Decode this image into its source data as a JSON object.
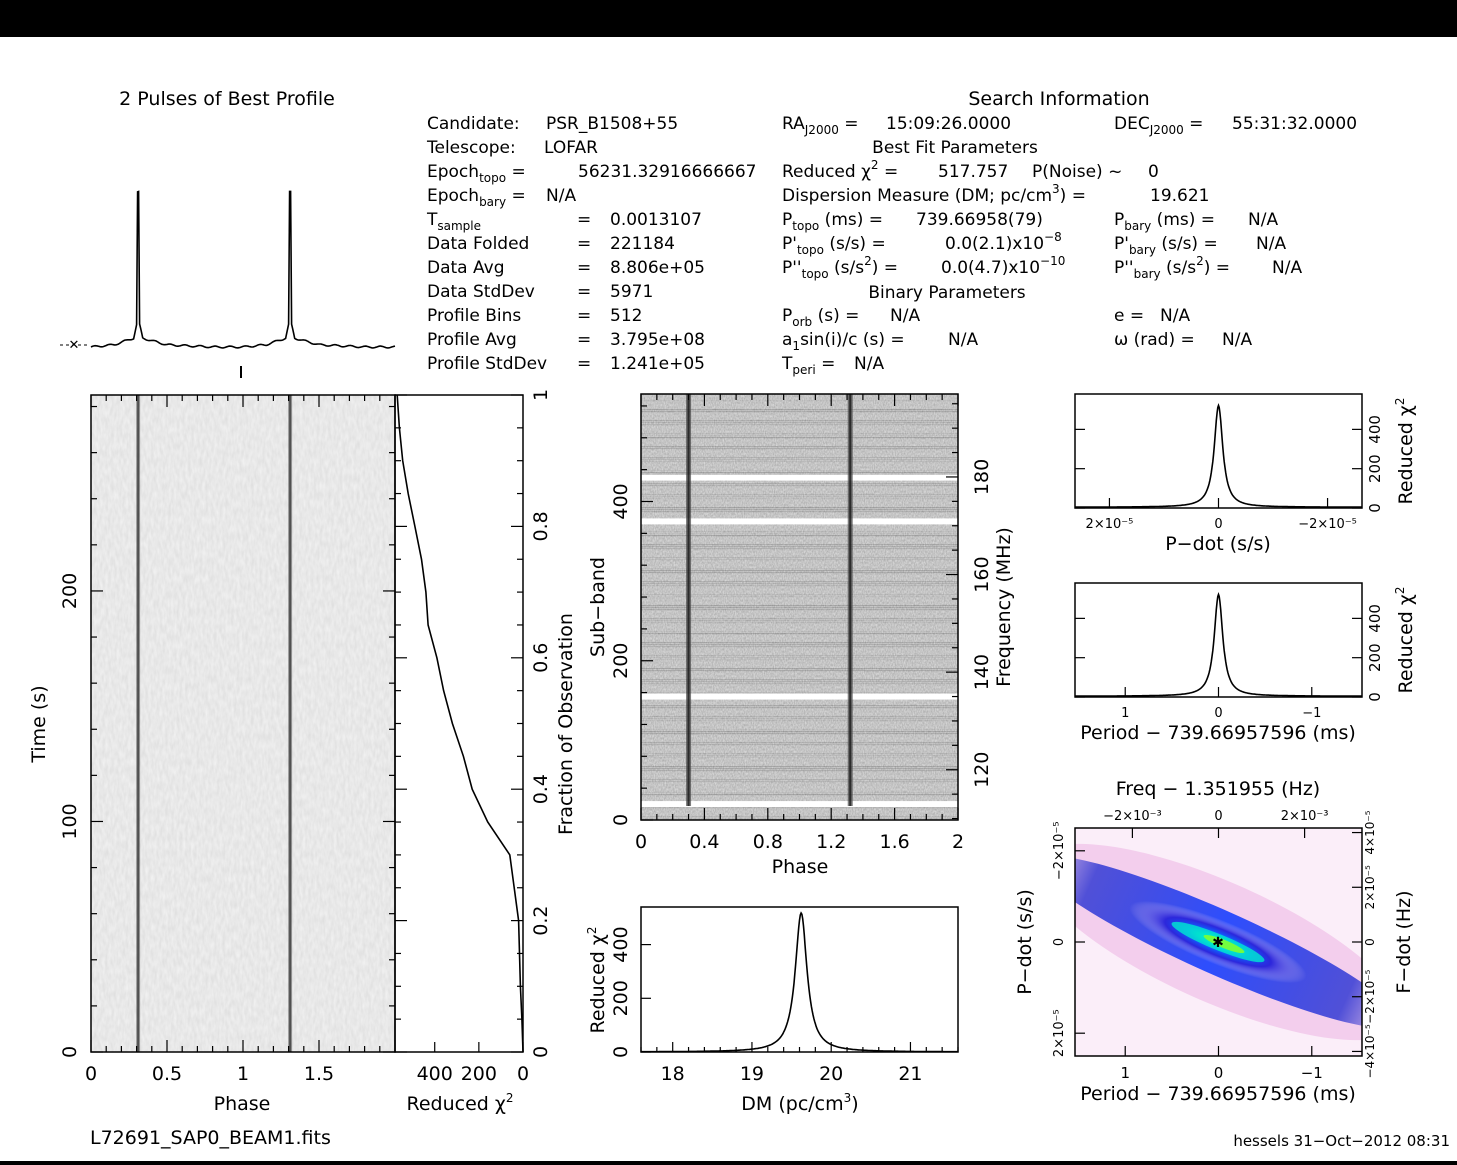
{
  "header": {
    "profile_title": "2 Pulses of Best Profile",
    "search_title": "Search Information",
    "best_fit_title": "Best Fit Parameters",
    "binary_title": "Binary Parameters",
    "filename": "L72691_SAP0_BEAM1.fits",
    "footer": "hessels 31−Oct−2012 08:31"
  },
  "info_left": {
    "candidate_label": "Candidate:",
    "candidate": "PSR_B1508+55",
    "telescope_label": "Telescope:",
    "telescope": "LOFAR",
    "epoch_topo": "56231.32916666667",
    "epoch_bary": "N/A",
    "tsample": "0.0013107",
    "data_folded_label": "Data Folded",
    "data_folded": "221184",
    "data_avg_label": "Data Avg",
    "data_avg": "8.806e+05",
    "data_stddev_label": "Data StdDev",
    "data_stddev": "5971",
    "profile_bins_label": "Profile Bins",
    "profile_bins": "512",
    "profile_avg_label": "Profile Avg",
    "profile_avg": "3.795e+08",
    "profile_stddev_label": "Profile StdDev",
    "profile_stddev": "1.241e+05"
  },
  "info_right": {
    "ra": "15:09:26.0000",
    "dec": "55:31:32.0000",
    "reduced_chi2": "517.757",
    "p_noise": "0",
    "dm": "19.621",
    "p_topo": "739.66958(79)",
    "p_bary": "N/A",
    "pd_topo": "0.0(2.1)x10",
    "pd_topo_exp": "−8",
    "pd_bary": "N/A",
    "pdd_topo": "0.0(4.7)x10",
    "pdd_topo_exp": "−10",
    "pdd_bary": "N/A",
    "p_orb": "N/A",
    "e": "N/A",
    "a1sini": "N/A",
    "omega": "N/A",
    "t_peri": "N/A"
  },
  "axis_labels": {
    "time": "Time (s)",
    "phase": "Phase",
    "reduced_chi2": "Reduced χ",
    "fraction": "Fraction of Observation",
    "subband": "Sub−band",
    "frequency": "Frequency (MHz)",
    "dm": "DM (pc/cm",
    "pdot": "P−dot (s/s)",
    "period": "Period − 739.66957596 (ms)",
    "freq": "Freq − 1.351955 (Hz)",
    "fdot": "F−dot (Hz)"
  },
  "chart_data": [
    {
      "id": "profile",
      "type": "line",
      "title": "2 Pulses of Best Profile",
      "x": [
        0,
        0.15,
        0.28,
        0.3,
        0.31,
        0.32,
        0.34,
        0.5,
        0.8,
        1.0,
        1.15,
        1.28,
        1.3,
        1.31,
        1.32,
        1.34,
        1.5,
        1.8,
        2.0
      ],
      "y": [
        0.0,
        0.01,
        0.04,
        0.1,
        1.0,
        0.1,
        0.04,
        0.01,
        0.0,
        0.0,
        0.01,
        0.04,
        0.1,
        1.0,
        0.1,
        0.04,
        0.01,
        0.0,
        0.0
      ]
    },
    {
      "id": "time_phase",
      "type": "heatmap",
      "xlabel": "Phase",
      "ylabel": "Time (s)",
      "xlim": [
        0,
        2
      ],
      "ylim": [
        0,
        285
      ],
      "x_ticks": [
        "0",
        "0.5",
        "1",
        "1.5"
      ],
      "y_ticks": [
        "0",
        "100",
        "200"
      ],
      "pulse_phases": [
        0.31,
        1.31
      ]
    },
    {
      "id": "chi2_vs_time",
      "type": "line",
      "xlabel": "Reduced χ²",
      "ylabel": "Fraction of Observation",
      "x_ticks": [
        "400",
        "200",
        "0"
      ],
      "y_ticks": [
        "0",
        "0.2",
        "0.4",
        "0.6",
        "0.8",
        "1"
      ],
      "fraction": [
        0,
        0.05,
        0.1,
        0.2,
        0.3,
        0.35,
        0.4,
        0.45,
        0.5,
        0.55,
        0.6,
        0.65,
        0.7,
        0.75,
        0.8,
        0.85,
        0.9,
        0.95,
        1.0
      ],
      "chi2": [
        0,
        5,
        12,
        20,
        60,
        160,
        230,
        270,
        320,
        360,
        390,
        430,
        440,
        460,
        490,
        520,
        545,
        560,
        570
      ]
    },
    {
      "id": "subband_phase",
      "type": "heatmap",
      "xlabel": "Phase",
      "ylabel": "Sub−band",
      "y2label": "Frequency (MHz)",
      "xlim": [
        0,
        2
      ],
      "x_ticks": [
        "0",
        "0.4",
        "0.8",
        "1.2",
        "1.6",
        "2"
      ],
      "y_ticks": [
        "0",
        "200",
        "400"
      ],
      "y2_ticks": [
        "120",
        "140",
        "160",
        "180"
      ],
      "pulse_phases": [
        0.3,
        1.32
      ],
      "zapped_subbands": [
        20,
        155,
        375,
        430
      ]
    },
    {
      "id": "dm_curve",
      "type": "line",
      "xlabel": "DM (pc/cm³)",
      "ylabel": "Reduced χ²",
      "xlim": [
        17.6,
        21.6
      ],
      "ylim": [
        0,
        540
      ],
      "x_ticks": [
        "18",
        "19",
        "20",
        "21"
      ],
      "y_ticks": [
        "0",
        "200",
        "400"
      ],
      "peak_x": 19.621,
      "peak_y": 517.757
    },
    {
      "id": "pdot_curve",
      "type": "line",
      "xlabel": "P−dot (s/s)",
      "ylabel": "Reduced χ²",
      "x_ticks": [
        "2×10⁻⁵",
        "0",
        "−2×10⁻⁵"
      ],
      "y_ticks": [
        "0",
        "200",
        "400"
      ],
      "ylim": [
        0,
        580
      ],
      "peak_y": 517.757
    },
    {
      "id": "period_curve",
      "type": "line",
      "xlabel": "Period − 739.66957596 (ms)",
      "ylabel": "Reduced χ²",
      "x_ticks": [
        "1",
        "0",
        "−1"
      ],
      "y_ticks": [
        "0",
        "200",
        "400"
      ],
      "ylim": [
        0,
        580
      ],
      "peak_y": 517.757
    },
    {
      "id": "p_pdot_plane",
      "type": "heatmap",
      "xlabel": "Period − 739.66957596 (ms)",
      "ylabel": "P−dot (s/s)",
      "x2label": "Freq − 1.351955 (Hz)",
      "y2label": "F−dot (Hz)",
      "x_ticks": [
        "1",
        "0",
        "−1"
      ],
      "x2_ticks": [
        "−2×10⁻³",
        "0",
        "2×10⁻³"
      ],
      "y_ticks": [
        "−2×10⁻⁵",
        "0",
        "2×10⁻⁵"
      ],
      "y2_ticks": [
        "4×10⁻⁵",
        "2×10⁻⁵",
        "0",
        "−2×10⁻⁵",
        "−4×10⁻⁵"
      ]
    }
  ]
}
